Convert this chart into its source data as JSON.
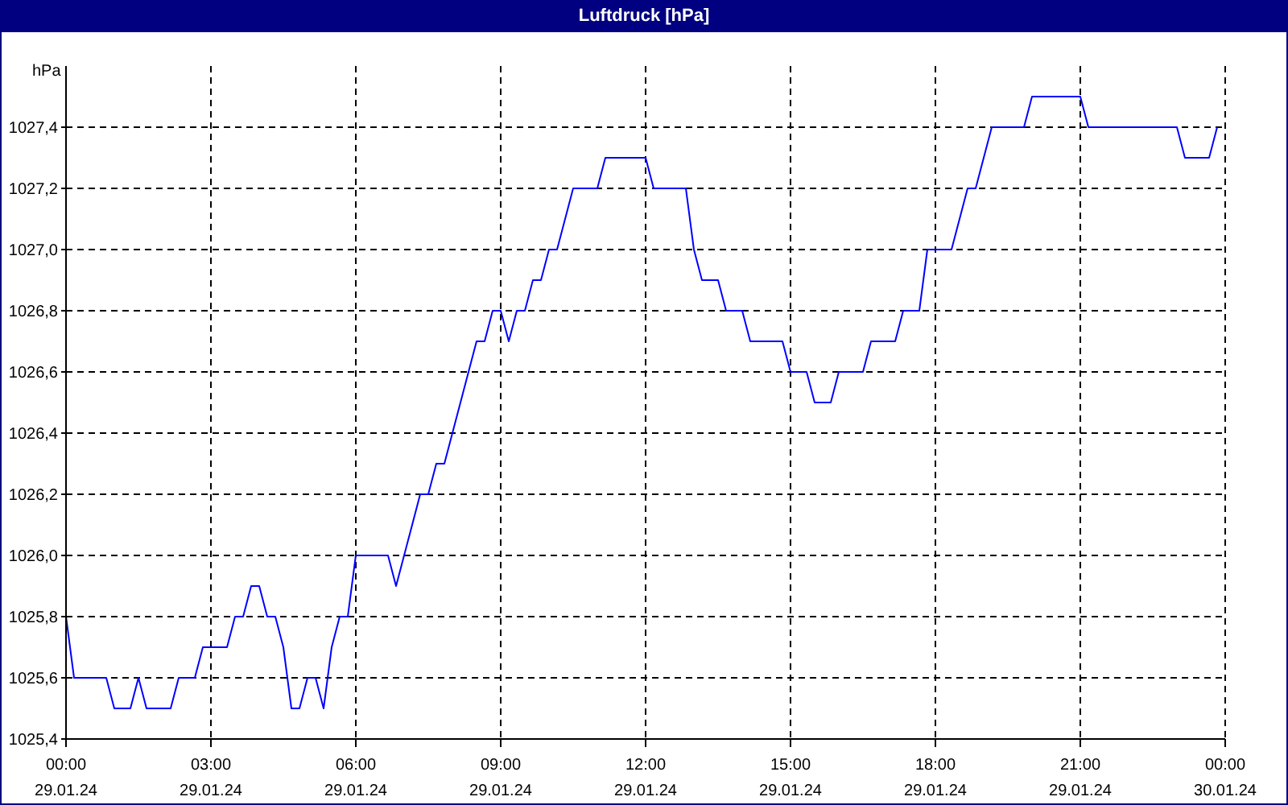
{
  "chart_data": {
    "type": "line",
    "title": "Luftdruck [hPa]",
    "ylabel": "hPa",
    "xlim": [
      "--01-29T00:00",
      "--01-30T00:00"
    ],
    "xticks": [
      {
        "value": "--01-29T00:00",
        "label": "00:00 29.01.24"
      },
      {
        "value": "--01-29T03:00",
        "label": "03:00 29.01.24"
      },
      {
        "value": "--01-29T06:00",
        "label": "06:00 29.01.24"
      },
      {
        "value": "--01-29T09:00",
        "label": "09:00 29.01.24"
      },
      {
        "value": "--01-29T12:00",
        "label": "12:00 29.01.24"
      },
      {
        "value": "--01-29T15:00",
        "label": "15:00 29.01.24"
      },
      {
        "value": "--01-29T18:00",
        "label": "18:00 29.01.24"
      },
      {
        "value": "--01-29T21:00",
        "label": "21:00 29.01.24"
      },
      {
        "value": "--01-30T00:00",
        "label": "00:00 30.01.24"
      }
    ],
    "ylim": [
      1025.4,
      1027.6
    ],
    "yticks": [
      {
        "value": 1025.4,
        "label": "1025,4"
      },
      {
        "value": 1025.6,
        "label": "1025,6"
      },
      {
        "value": 1025.8,
        "label": "1025,8"
      },
      {
        "value": 1026.0,
        "label": "1026,0"
      },
      {
        "value": 1026.2,
        "label": "1026,2"
      },
      {
        "value": 1026.4,
        "label": "1026,4"
      },
      {
        "value": 1026.6,
        "label": "1026,6"
      },
      {
        "value": 1026.8,
        "label": "1026,8"
      },
      {
        "value": 1027.0,
        "label": "1027,0"
      },
      {
        "value": 1027.2,
        "label": "1027,2"
      },
      {
        "value": 1027.4,
        "label": "1027,4"
      }
    ],
    "grid": true,
    "legend": false,
    "marker": "none",
    "line_style": "solid",
    "x": [
      "--01-29T00:00",
      "--01-29T00:10",
      "--01-29T00:50",
      "--01-29T01:00",
      "--01-29T01:20",
      "--01-29T01:30",
      "--01-29T01:40",
      "--01-29T02:10",
      "--01-29T02:20",
      "--01-29T02:40",
      "--01-29T02:50",
      "--01-29T03:20",
      "--01-29T03:30",
      "--01-29T03:40",
      "--01-29T03:50",
      "--01-29T04:00",
      "--01-29T04:10",
      "--01-29T04:20",
      "--01-29T04:30",
      "--01-29T04:40",
      "--01-29T04:50",
      "--01-29T05:00",
      "--01-29T05:10",
      "--01-29T05:20",
      "--01-29T05:30",
      "--01-29T05:40",
      "--01-29T05:50",
      "--01-29T06:00",
      "--01-29T06:40",
      "--01-29T06:50",
      "--01-29T07:00",
      "--01-29T07:20",
      "--01-29T07:30",
      "--01-29T07:40",
      "--01-29T07:50",
      "--01-29T08:30",
      "--01-29T08:40",
      "--01-29T08:50",
      "--01-29T09:00",
      "--01-29T09:10",
      "--01-29T09:20",
      "--01-29T09:30",
      "--01-29T09:40",
      "--01-29T09:50",
      "--01-29T10:00",
      "--01-29T10:10",
      "--01-29T10:30",
      "--01-29T11:00",
      "--01-29T11:10",
      "--01-29T12:00",
      "--01-29T12:10",
      "--01-29T12:50",
      "--01-29T13:00",
      "--01-29T13:10",
      "--01-29T13:30",
      "--01-29T13:40",
      "--01-29T14:00",
      "--01-29T14:10",
      "--01-29T14:50",
      "--01-29T15:00",
      "--01-29T15:20",
      "--01-29T15:30",
      "--01-29T15:50",
      "--01-29T16:00",
      "--01-29T16:30",
      "--01-29T16:40",
      "--01-29T17:10",
      "--01-29T17:20",
      "--01-29T17:40",
      "--01-29T17:50",
      "--01-29T18:20",
      "--01-29T18:40",
      "--01-29T18:50",
      "--01-29T19:10",
      "--01-29T19:50",
      "--01-29T20:00",
      "--01-29T21:00",
      "--01-29T21:10",
      "--01-29T23:00",
      "--01-29T23:10",
      "--01-29T23:40",
      "--01-29T23:50"
    ],
    "series": [
      {
        "color": "#0000ff",
        "values": [
          1025.8,
          1025.6,
          1025.6,
          1025.5,
          1025.5,
          1025.6,
          1025.5,
          1025.5,
          1025.6,
          1025.6,
          1025.7,
          1025.7,
          1025.8,
          1025.8,
          1025.9,
          1025.9,
          1025.8,
          1025.8,
          1025.7,
          1025.5,
          1025.5,
          1025.6,
          1025.6,
          1025.5,
          1025.7,
          1025.8,
          1025.8,
          1026.0,
          1026.0,
          1025.9,
          1026.0,
          1026.2,
          1026.2,
          1026.3,
          1026.3,
          1026.7,
          1026.7,
          1026.8,
          1026.8,
          1026.7,
          1026.8,
          1026.8,
          1026.9,
          1026.9,
          1027.0,
          1027.0,
          1027.2,
          1027.2,
          1027.3,
          1027.3,
          1027.2,
          1027.2,
          1027.0,
          1026.9,
          1026.9,
          1026.8,
          1026.8,
          1026.7,
          1026.7,
          1026.6,
          1026.6,
          1026.5,
          1026.5,
          1026.6,
          1026.6,
          1026.7,
          1026.7,
          1026.8,
          1026.8,
          1027.0,
          1027.0,
          1027.2,
          1027.2,
          1027.4,
          1027.4,
          1027.5,
          1027.5,
          1027.4,
          1027.4,
          1027.3,
          1027.3,
          1027.4
        ]
      }
    ]
  }
}
